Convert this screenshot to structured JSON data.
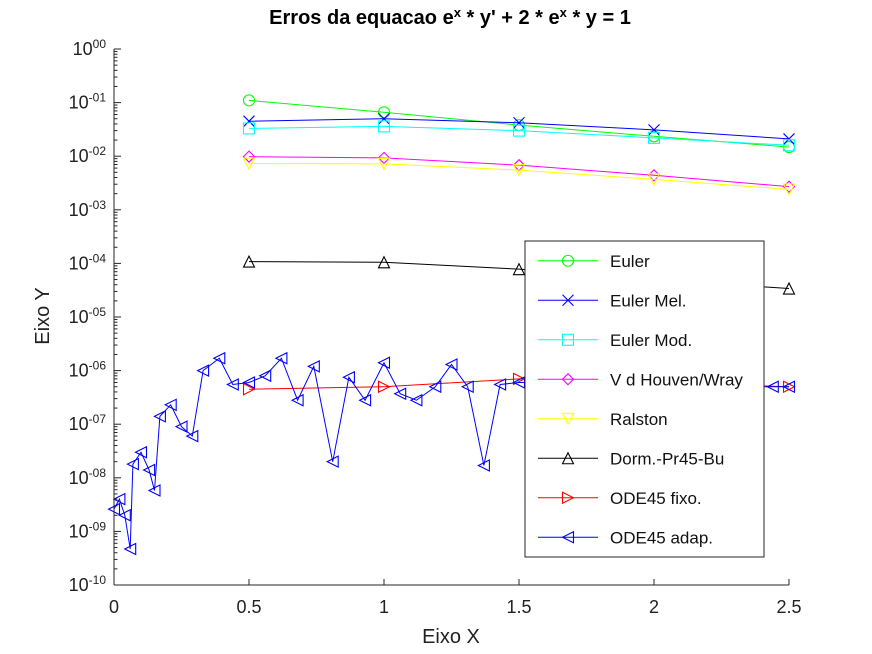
{
  "chart_data": {
    "type": "line",
    "title": "Erros da equacao e^x * y' + 2 * e^x * y = 1",
    "xlabel": "Eixo X",
    "ylabel": "Eixo Y",
    "xlim": [
      0,
      2.5
    ],
    "ylim": [
      1e-10,
      1
    ],
    "yscale": "log",
    "grid": false,
    "legend_position": "right",
    "x_ticks": [
      0,
      0.5,
      1,
      1.5,
      2,
      2.5
    ],
    "x_tick_labels": [
      "0",
      "0.5",
      "1",
      "1.5",
      "2",
      "2.5"
    ],
    "y_ticks": [
      1e-10,
      1e-09,
      1e-08,
      1e-07,
      1e-06,
      1e-05,
      0.0001,
      0.001,
      0.01,
      0.1,
      1
    ],
    "y_tick_labels": [
      {
        "base": "10",
        "exp": "-10"
      },
      {
        "base": "10",
        "exp": "-09"
      },
      {
        "base": "10",
        "exp": "-08"
      },
      {
        "base": "10",
        "exp": "-07"
      },
      {
        "base": "10",
        "exp": "-06"
      },
      {
        "base": "10",
        "exp": "-05"
      },
      {
        "base": "10",
        "exp": "-04"
      },
      {
        "base": "10",
        "exp": "-03"
      },
      {
        "base": "10",
        "exp": "-02"
      },
      {
        "base": "10",
        "exp": "-01"
      },
      {
        "base": "10",
        "exp": "00"
      }
    ],
    "series": [
      {
        "name": "Euler",
        "color": "#00ff00",
        "marker": "circle",
        "x": [
          0.5,
          1,
          1.5,
          2,
          2.5
        ],
        "y": [
          0.11,
          0.066,
          0.038,
          0.0235,
          0.0148
        ]
      },
      {
        "name": "Euler Mel.",
        "color": "#0000ff",
        "marker": "x",
        "x": [
          0.5,
          1,
          1.5,
          2,
          2.5
        ],
        "y": [
          0.045,
          0.05,
          0.042,
          0.031,
          0.021
        ]
      },
      {
        "name": "Euler Mod.",
        "color": "#00ffff",
        "marker": "square",
        "x": [
          0.5,
          1,
          1.5,
          2,
          2.5
        ],
        "y": [
          0.033,
          0.036,
          0.03,
          0.022,
          0.016
        ]
      },
      {
        "name": "V d Houven/Wray",
        "color": "#ff00ff",
        "marker": "diamond",
        "x": [
          0.5,
          1,
          1.5,
          2,
          2.5
        ],
        "y": [
          0.0098,
          0.0093,
          0.0068,
          0.0044,
          0.0027
        ]
      },
      {
        "name": "Ralston",
        "color": "#ffff00",
        "marker": "triangle-down",
        "x": [
          0.5,
          1,
          1.5,
          2,
          2.5
        ],
        "y": [
          0.0073,
          0.0072,
          0.0055,
          0.0037,
          0.0024
        ]
      },
      {
        "name": "Dorm.-Pr45-Bu",
        "color": "#000000",
        "marker": "triangle-up",
        "x": [
          0.5,
          1,
          1.5,
          2,
          2.5
        ],
        "y": [
          0.000108,
          0.000105,
          7.8e-05,
          5e-05,
          3.4e-05
        ]
      },
      {
        "name": "ODE45 fixo.",
        "color": "#ff0000",
        "marker": "triangle-right",
        "x": [
          0.5,
          1,
          1.5,
          2,
          2.5
        ],
        "y": [
          4.5e-07,
          5e-07,
          7e-07,
          6e-07,
          5e-07
        ]
      },
      {
        "name": "ODE45 adap.",
        "color": "#0000ff",
        "marker": "triangle-left",
        "x": [
          0,
          0.02,
          0.04,
          0.06,
          0.07,
          0.1,
          0.13,
          0.15,
          0.17,
          0.21,
          0.25,
          0.29,
          0.33,
          0.39,
          0.44,
          0.5,
          0.56,
          0.62,
          0.68,
          0.74,
          0.81,
          0.87,
          0.93,
          1,
          1.06,
          1.12,
          1.19,
          1.25,
          1.31,
          1.37,
          1.43,
          1.5,
          1.56,
          1.62,
          1.68,
          1.75,
          1.81,
          1.87,
          1.94,
          2,
          2.06,
          2.12,
          2.19,
          2.25,
          2.31,
          2.37,
          2.44,
          2.5
        ],
        "y": [
          2.6e-09,
          4e-09,
          2e-09,
          4.7e-10,
          1.8e-08,
          3e-08,
          1.4e-08,
          5.8e-09,
          1.4e-07,
          2.3e-07,
          9e-08,
          6e-08,
          1e-06,
          1.7e-06,
          5.5e-07,
          6e-07,
          8e-07,
          1.7e-06,
          2.8e-07,
          1.2e-06,
          2e-08,
          7.5e-07,
          2.8e-07,
          1.4e-06,
          3.7e-07,
          2.8e-07,
          5e-07,
          1.3e-06,
          5e-07,
          1.7e-08,
          5.5e-07,
          6e-07,
          6e-07,
          6e-07,
          6e-07,
          6e-07,
          6e-07,
          6e-07,
          6e-07,
          6e-07,
          6e-07,
          5.5e-07,
          5.5e-07,
          5e-07,
          5e-07,
          5e-07,
          5e-07,
          5e-07
        ]
      }
    ]
  }
}
